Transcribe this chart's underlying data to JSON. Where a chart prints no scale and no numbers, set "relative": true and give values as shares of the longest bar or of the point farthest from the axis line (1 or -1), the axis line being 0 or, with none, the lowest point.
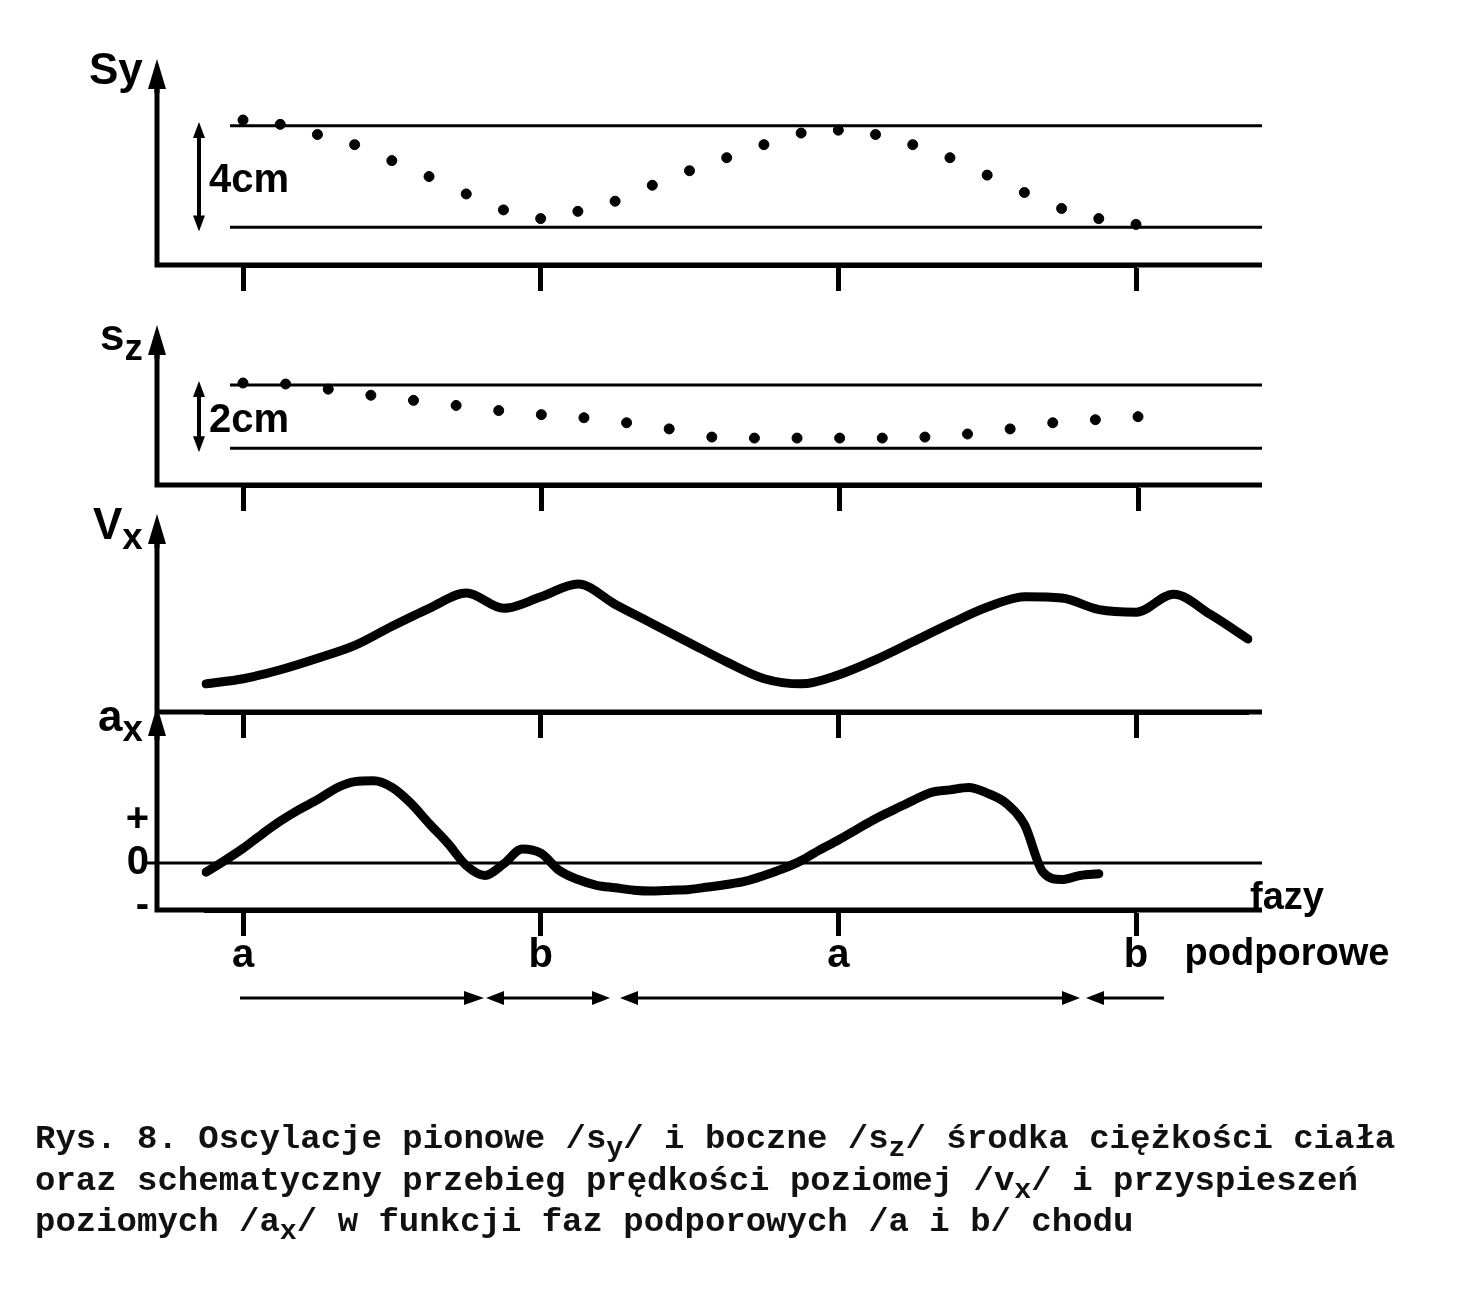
{
  "chart_data": [
    {
      "type": "scatter",
      "ylabel": "Sy",
      "relative": true,
      "marker": "circle",
      "color": "#000000",
      "tick_labels": false,
      "categories": [
        "a",
        null,
        null,
        null,
        null,
        null,
        null,
        null,
        "b",
        null,
        null,
        null,
        null,
        null,
        null,
        null,
        "a",
        null,
        null,
        null,
        null,
        null,
        null,
        null,
        "b"
      ],
      "values": [
        1,
        0.97,
        0.9,
        0.83,
        0.72,
        0.61,
        0.49,
        0.38,
        0.32,
        0.37,
        0.44,
        0.55,
        0.65,
        0.74,
        0.83,
        0.91,
        0.93,
        0.9,
        0.83,
        0.74,
        0.62,
        0.5,
        0.39,
        0.32,
        0.28
      ],
      "ref_lines": [
        {
          "axis": "y",
          "value": 0.96
        },
        {
          "axis": "y",
          "value": 0.26
        }
      ],
      "annotations": [
        "4cm"
      ]
    },
    {
      "type": "scatter",
      "ylabel": "s$_{z}$",
      "relative": true,
      "marker": "circle",
      "color": "#000000",
      "tick_labels": false,
      "categories": [
        "a",
        null,
        null,
        null,
        null,
        null,
        null,
        "b",
        null,
        null,
        null,
        null,
        null,
        null,
        "a",
        null,
        null,
        null,
        null,
        null,
        null,
        "b"
      ],
      "values": [
        1,
        0.99,
        0.94,
        0.88,
        0.83,
        0.78,
        0.73,
        0.69,
        0.66,
        0.61,
        0.55,
        0.47,
        0.46,
        0.46,
        0.46,
        0.46,
        0.47,
        0.5,
        0.55,
        0.61,
        0.64,
        0.67
      ],
      "ref_lines": [
        {
          "axis": "y",
          "value": 0.98
        },
        {
          "axis": "y",
          "value": 0.36
        }
      ],
      "annotations": [
        "2cm"
      ]
    },
    {
      "type": "line",
      "ylabel": "V$_{x}$",
      "relative": true,
      "marker": "none",
      "line_style": "solid",
      "color": "#000000",
      "tick_labels": false,
      "categories": [
        null,
        "a",
        null,
        null,
        null,
        null,
        null,
        null,
        null,
        "b",
        null,
        null,
        null,
        null,
        null,
        null,
        null,
        "a",
        null,
        null,
        null,
        null,
        null,
        null,
        null,
        "b",
        null,
        null,
        null
      ],
      "values": [
        0.22,
        0.26,
        0.33,
        0.42,
        0.52,
        0.67,
        0.81,
        0.93,
        0.81,
        0.9,
        1,
        0.84,
        0.69,
        0.54,
        0.39,
        0.26,
        0.22,
        0.29,
        0.41,
        0.55,
        0.69,
        0.82,
        0.9,
        0.89,
        0.8,
        0.78,
        0.92,
        0.76,
        0.57
      ]
    },
    {
      "type": "line",
      "ylabel": "a$_{x}$",
      "xlabel": "fazy podporowe",
      "relative": true,
      "marker": "none",
      "line_style": "solid",
      "color": "#000000",
      "categories": [
        null,
        null,
        "a",
        null,
        null,
        null,
        null,
        null,
        null,
        null,
        null,
        null,
        null,
        null,
        null,
        null,
        null,
        null,
        "b",
        null,
        null,
        null,
        null,
        null,
        null,
        null,
        null,
        null,
        null,
        null,
        null,
        null,
        null,
        null,
        "a",
        null,
        null,
        null,
        null,
        null,
        null,
        null,
        null,
        null,
        null,
        null,
        null,
        null,
        null,
        null,
        "b"
      ],
      "values": [
        -0.11,
        0.03,
        0.18,
        0.35,
        0.51,
        0.65,
        0.77,
        0.91,
        0.99,
        1,
        0.92,
        0.73,
        0.48,
        0.24,
        -0.03,
        -0.15,
        -0.01,
        0.17,
        0.12,
        -0.09,
        -0.2,
        -0.27,
        -0.3,
        -0.33,
        -0.34,
        -0.33,
        -0.32,
        -0.29,
        -0.26,
        -0.22,
        -0.15,
        -0.07,
        0.03,
        0.16,
        0.28,
        0.41,
        0.54,
        0.65,
        0.76,
        0.86,
        0.89,
        0.92,
        0.85,
        0.73,
        0.47,
        -0.11,
        -0.2,
        -0.15,
        -0.13,
        null,
        null
      ],
      "ref_lines": [
        {
          "axis": "y",
          "value": 0
        }
      ],
      "annotations": [
        "+",
        "0",
        "-",
        "Rys. 8. Oscylacje pionowe /s$_{y}$/ i boczne /s$_{z}$/ środka ciężkości ciała oraz schematyczny przebieg prędkości poziomej /v$_{x}$/ i przyspieszeń poziomych /a$_{x}$/ w funkcji faz podporowych /a i b/ chodu"
      ]
    }
  ]
}
